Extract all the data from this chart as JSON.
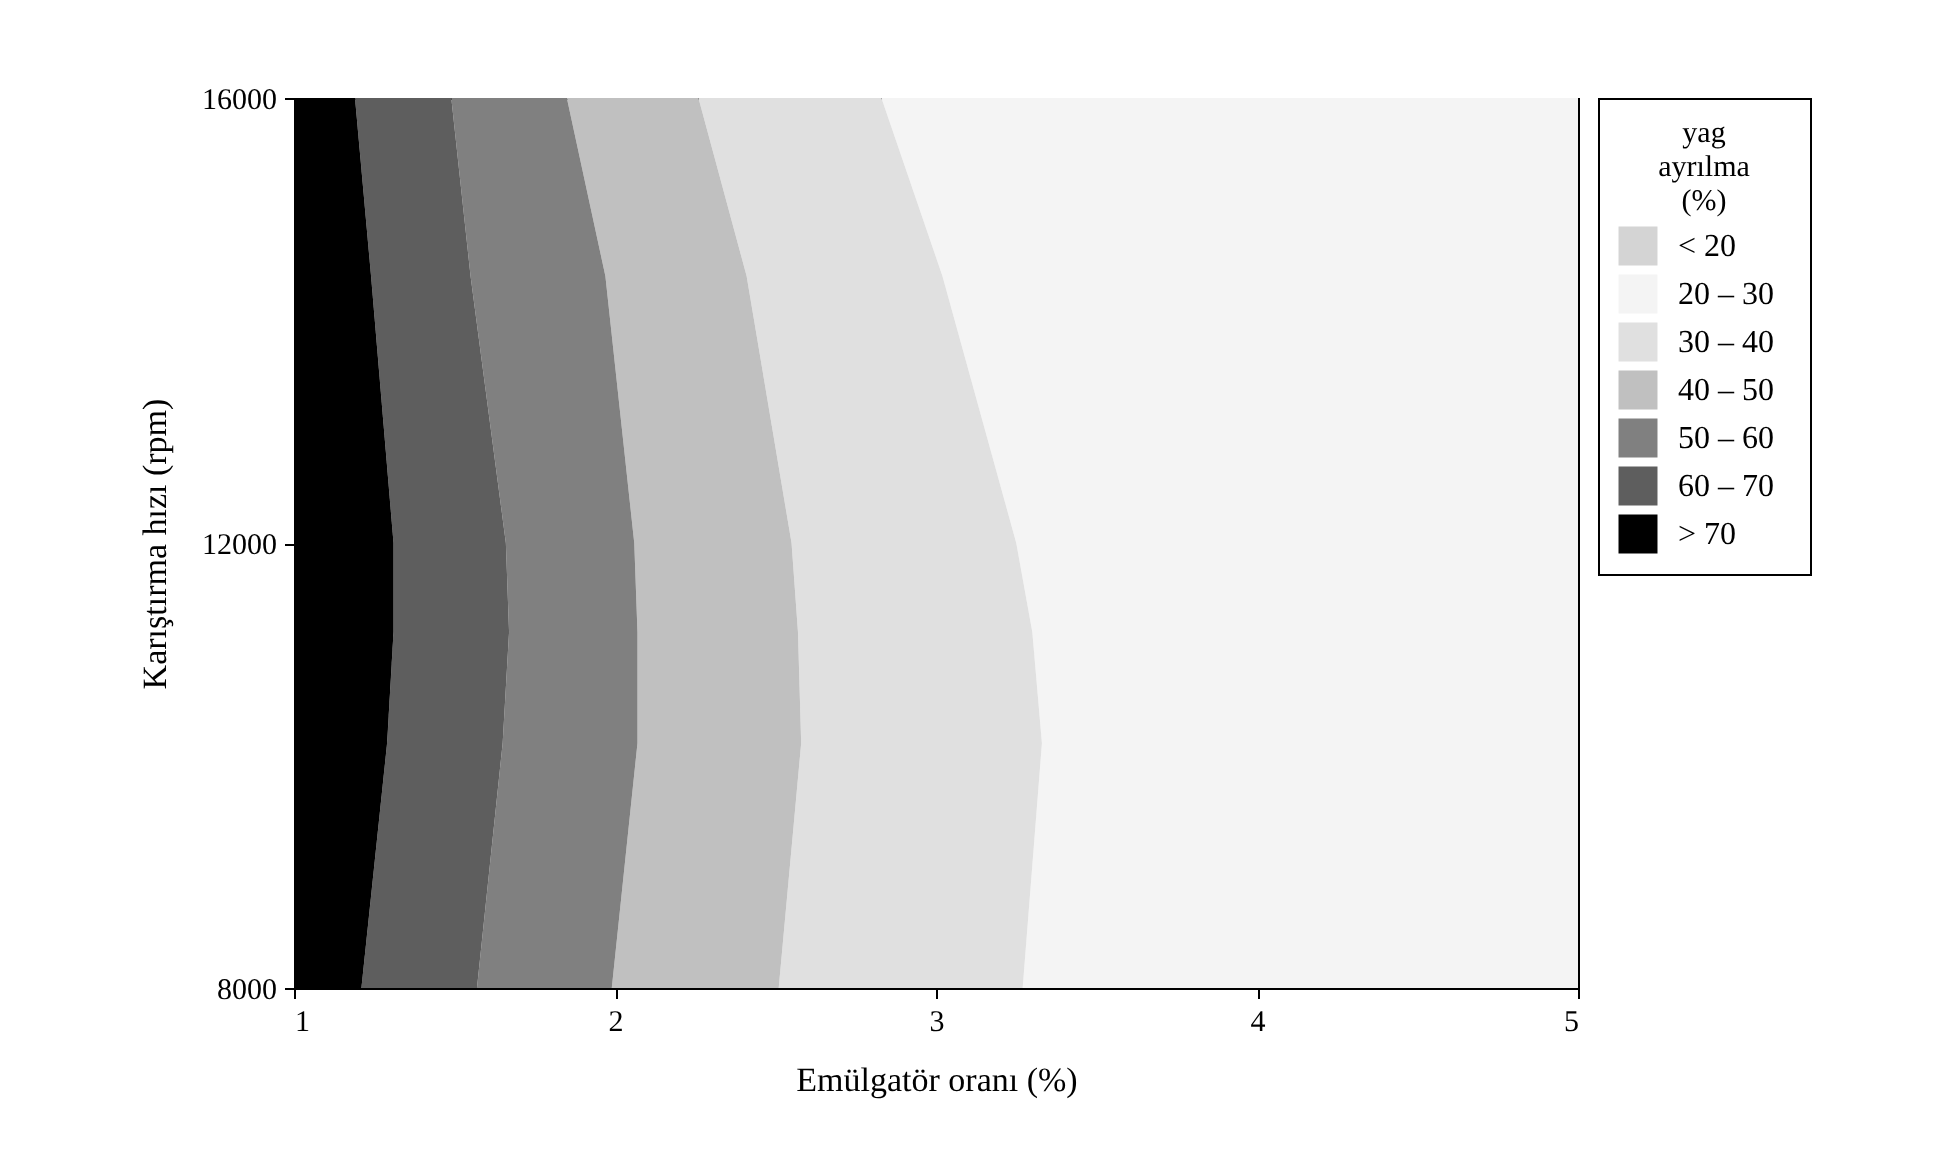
{
  "chart_data": {
    "type": "area",
    "orientation": "horizontal",
    "xlabel": "Emülgatör oranı (%)",
    "ylabel": "Karıştırma hızı (rpm)",
    "legend_title": "yag ayrılma (%)",
    "legend": "right",
    "grid": false,
    "x": [
      16000,
      14400,
      12000,
      11200,
      10200,
      8000
    ],
    "xlim": [
      1,
      5
    ],
    "xticks": [
      1,
      2,
      3,
      4,
      5
    ],
    "ylim": [
      8000,
      16000
    ],
    "yticks": [
      8000,
      12000,
      16000
    ],
    "series": [
      {
        "name": "<  20",
        "color": "#d4d4d4",
        "values": [
          null,
          null,
          null,
          null,
          null,
          null
        ]
      },
      {
        "name": "20  –  30",
        "color": "#f4f4f4",
        "values": [
          5,
          5,
          5,
          5,
          5,
          5
        ]
      },
      {
        "name": "30  –  40",
        "color": "#e0e0e0",
        "values": [
          2.83,
          3.02,
          3.25,
          3.3,
          3.33,
          3.27
        ]
      },
      {
        "name": "40  –  50",
        "color": "#c0c0c0",
        "values": [
          2.26,
          2.41,
          2.55,
          2.57,
          2.58,
          2.51
        ]
      },
      {
        "name": "50  –  60",
        "color": "#808080",
        "values": [
          1.85,
          1.97,
          2.06,
          2.07,
          2.07,
          1.99
        ]
      },
      {
        "name": "60  –  70",
        "color": "#5e5e5e",
        "values": [
          1.49,
          1.55,
          1.66,
          1.67,
          1.65,
          1.57
        ]
      },
      {
        "name": ">  70",
        "color": "#000000",
        "values": [
          1.19,
          1.24,
          1.31,
          1.31,
          1.29,
          1.21
        ]
      }
    ]
  }
}
